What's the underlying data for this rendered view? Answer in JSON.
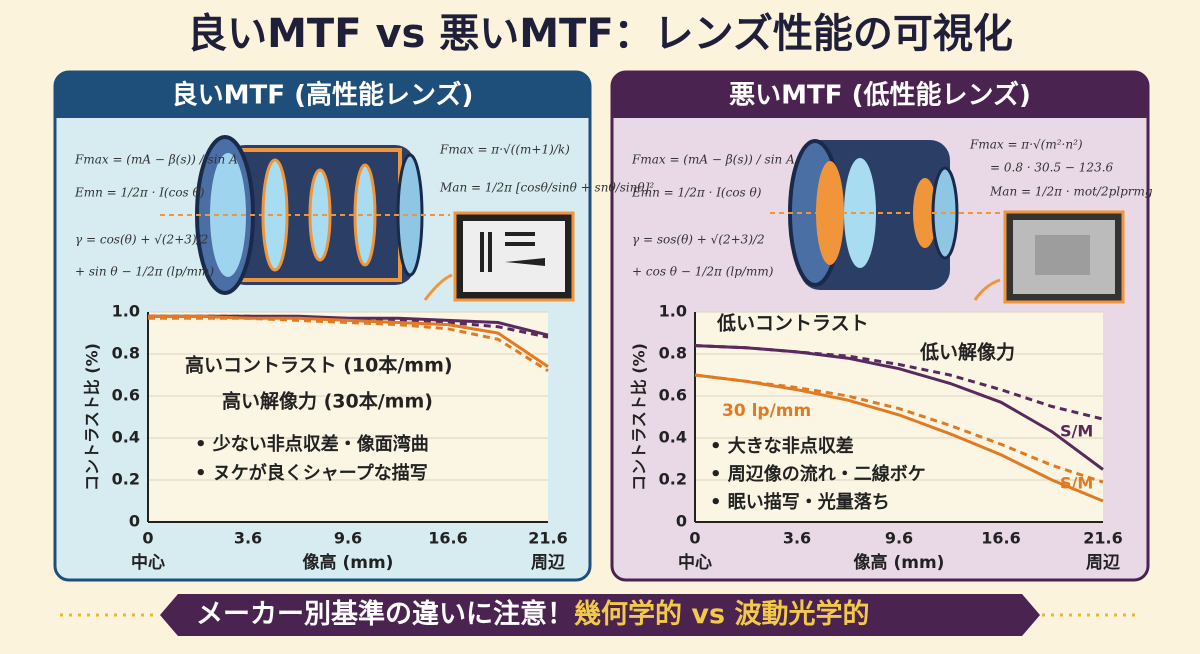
{
  "title": "良いMTF vs 悪いMTF：レンズ性能の可視化",
  "footer": {
    "text": "メーカー別基準の違いに注意！",
    "highlight": "幾何学的 vs 波動光学的"
  },
  "chart_data": [
    {
      "type": "line",
      "title": "良いMTF (高性能レンズ)",
      "formulas": [
        "Fmax = (mA − β(s)) / sin A",
        "Emn = 1/2π · I(cos θ)",
        "γ = cos(θ) + √(2+3)/2",
        "+ sin θ − 1/2π (lp/mm)",
        "Fmax = π·√((m+1)/k)",
        "Man = 1/2π [cosθ/sinθ + snθ/sinθ]²"
      ],
      "categories": [
        "0",
        null,
        "3.6",
        null,
        "9.6",
        null,
        "16.6",
        null,
        "21.6"
      ],
      "x_end_labels": [
        "中心",
        "周辺"
      ],
      "xlabel": "像高 (mm)",
      "ylabel": "コントラスト比 (%)",
      "ylim": [
        0,
        1
      ],
      "yticks": [
        0,
        0.2,
        0.4,
        0.6,
        0.8,
        {
          "value": 1,
          "label": "1.0"
        }
      ],
      "grid": true,
      "series": [
        {
          "color": "#5a2a5e",
          "dashed": false,
          "values": [
            0.98,
            0.98,
            0.98,
            0.98,
            0.97,
            0.97,
            0.96,
            0.95,
            0.89
          ]
        },
        {
          "color": "#5a2a5e",
          "dashed": true,
          "values": [
            0.98,
            0.98,
            0.98,
            0.97,
            0.97,
            0.96,
            0.95,
            0.93,
            0.88
          ]
        },
        {
          "color": "#e07b24",
          "dashed": false,
          "values": [
            0.98,
            0.98,
            0.97,
            0.97,
            0.96,
            0.95,
            0.94,
            0.9,
            0.74
          ]
        },
        {
          "color": "#e07b24",
          "dashed": true,
          "values": [
            0.97,
            0.97,
            0.97,
            0.96,
            0.95,
            0.94,
            0.92,
            0.87,
            0.72
          ]
        }
      ],
      "annotations": [
        "高いコントラスト (10本/mm)",
        "高い解像力 (30本/mm)",
        "• 少ない非点収差・像面湾曲",
        "• ヌケが良くシャープな描写"
      ]
    },
    {
      "type": "line",
      "title": "悪いMTF (低性能レンズ)",
      "formulas": [
        "Fmax = (mA − β(s)) / sin A",
        "Emn = 1/2π · I(cos θ)",
        "γ = sos(θ) + √(2+3)/2",
        "+ cos θ − 1/2π (lp/mm)",
        "Fmax = π·√(m²·n²)",
        "= 0.8 · 30.5 − 123.6",
        "Man = 1/2π · mot/2plprmg"
      ],
      "categories": [
        "0",
        null,
        "3.6",
        null,
        "9.6",
        null,
        "16.6",
        null,
        "21.6"
      ],
      "x_end_labels": [
        "中心",
        "周辺"
      ],
      "xlabel": "像高 (mm)",
      "ylabel": "コントラスト比 (%)",
      "ylim": [
        0,
        1
      ],
      "yticks": [
        0,
        0.2,
        0.4,
        0.6,
        0.8,
        {
          "value": 1,
          "label": "1.0"
        }
      ],
      "grid": true,
      "series": [
        {
          "color": "#5a2a5e",
          "dashed": false,
          "values": [
            0.84,
            0.83,
            0.81,
            0.78,
            0.73,
            0.66,
            0.57,
            0.43,
            0.25
          ]
        },
        {
          "color": "#5a2a5e",
          "dashed": true,
          "values": [
            0.84,
            0.83,
            0.81,
            0.79,
            0.75,
            0.7,
            0.63,
            0.55,
            0.49
          ]
        },
        {
          "color": "#e07b24",
          "dashed": false,
          "values": [
            0.7,
            0.67,
            0.63,
            0.58,
            0.51,
            0.42,
            0.32,
            0.2,
            0.1
          ]
        },
        {
          "color": "#e07b24",
          "dashed": true,
          "values": [
            0.7,
            0.67,
            0.64,
            0.6,
            0.54,
            0.46,
            0.37,
            0.27,
            0.19
          ]
        }
      ],
      "annotations": [
        "低いコントラスト",
        "低い解像力",
        "30 lp/mm",
        "S/M",
        "S/M",
        "• 大きな非点収差",
        "• 周辺像の流れ・二線ボケ",
        "• 眠い描写・光量落ち"
      ]
    }
  ]
}
